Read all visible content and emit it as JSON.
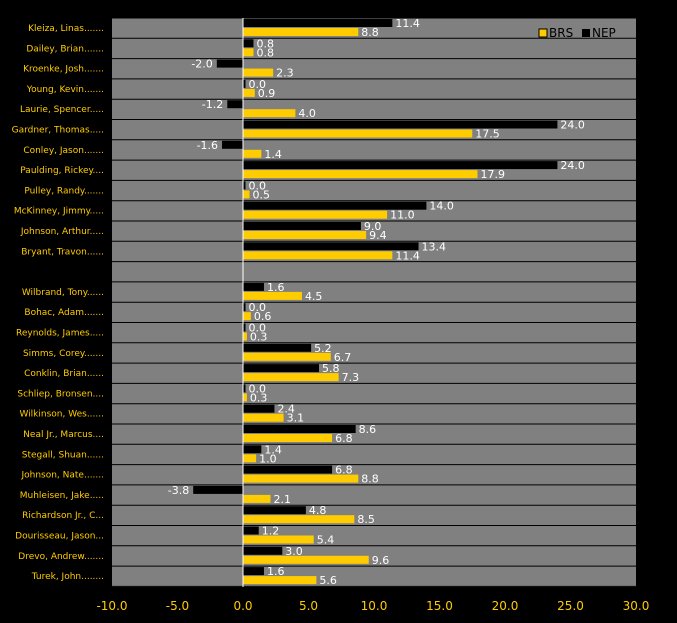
{
  "chart_data": {
    "type": "bar",
    "orientation": "horizontal",
    "xlim": [
      -10,
      30
    ],
    "x_ticks": [
      "-10.0",
      "-5.0",
      "0.0",
      "5.0",
      "10.0",
      "15.0",
      "20.0",
      "25.0",
      "30.0"
    ],
    "legend_placement": "top-right",
    "grid": "horizontal row separators",
    "colors": {
      "background": "#000000",
      "plot_area": "#808080",
      "row_line": "#000000",
      "zero_line": "#ffffff",
      "brs": "#ffcc00",
      "nep": "#000000",
      "label_text": "#ffcc00",
      "value_text": "#ffffff",
      "tick_text": "#ffcc00"
    },
    "series": [
      {
        "name": "NEP",
        "key": "nep"
      },
      {
        "name": "BRS",
        "key": "brs"
      }
    ],
    "rows": [
      {
        "label": "Kleiza, Linas.......",
        "nep": 11.4,
        "brs": 8.8,
        "nep_text": "11.4",
        "brs_text": "8.8"
      },
      {
        "label": "Dailey, Brian.......",
        "nep": 0.8,
        "brs": 0.8,
        "nep_text": "0.8",
        "brs_text": "0.8"
      },
      {
        "label": "Kroenke, Josh.......",
        "nep": -2.0,
        "brs": 2.3,
        "nep_text": "-2.0",
        "brs_text": "2.3"
      },
      {
        "label": "Young, Kevin.......",
        "nep": 0.0,
        "brs": 0.9,
        "nep_text": "0.0",
        "brs_text": "0.9"
      },
      {
        "label": "Laurie, Spencer.....",
        "nep": -1.2,
        "brs": 4.0,
        "nep_text": "-1.2",
        "brs_text": "4.0"
      },
      {
        "label": "Gardner, Thomas.....",
        "nep": 24.0,
        "brs": 17.5,
        "nep_text": "24.0",
        "brs_text": "17.5"
      },
      {
        "label": "Conley, Jason.......",
        "nep": -1.6,
        "brs": 1.4,
        "nep_text": "-1.6",
        "brs_text": "1.4"
      },
      {
        "label": "Paulding, Rickey....",
        "nep": 24.0,
        "brs": 17.9,
        "nep_text": "24.0",
        "brs_text": "17.9"
      },
      {
        "label": "Pulley, Randy.......",
        "nep": 0.0,
        "brs": 0.5,
        "nep_text": "0.0",
        "brs_text": "0.5"
      },
      {
        "label": "McKinney, Jimmy.....",
        "nep": 14.0,
        "brs": 11.0,
        "nep_text": "14.0",
        "brs_text": "11.0"
      },
      {
        "label": "Johnson, Arthur.....",
        "nep": 9.0,
        "brs": 9.4,
        "nep_text": "9.0",
        "brs_text": "9.4"
      },
      {
        "label": "Bryant, Travon......",
        "nep": 13.4,
        "brs": 11.4,
        "nep_text": "13.4",
        "brs_text": "11.4"
      },
      {
        "label": "",
        "nep": null,
        "brs": null,
        "nep_text": "",
        "brs_text": ""
      },
      {
        "label": "Wilbrand, Tony......",
        "nep": 1.6,
        "brs": 4.5,
        "nep_text": "1.6",
        "brs_text": "4.5"
      },
      {
        "label": "Bohac, Adam.......",
        "nep": 0.0,
        "brs": 0.6,
        "nep_text": "0.0",
        "brs_text": "0.6"
      },
      {
        "label": "Reynolds, James.....",
        "nep": 0.0,
        "brs": 0.3,
        "nep_text": "0.0",
        "brs_text": "0.3"
      },
      {
        "label": "Simms, Corey.......",
        "nep": 5.2,
        "brs": 6.7,
        "nep_text": "5.2",
        "brs_text": "6.7"
      },
      {
        "label": "Conklin, Brian......",
        "nep": 5.8,
        "brs": 7.3,
        "nep_text": "5.8",
        "brs_text": "7.3"
      },
      {
        "label": "Schliep, Bronsen....",
        "nep": 0.0,
        "brs": 0.3,
        "nep_text": "0.0",
        "brs_text": "0.3"
      },
      {
        "label": "Wilkinson, Wes......",
        "nep": 2.4,
        "brs": 3.1,
        "nep_text": "2.4",
        "brs_text": "3.1"
      },
      {
        "label": "Neal Jr., Marcus....",
        "nep": 8.6,
        "brs": 6.8,
        "nep_text": "8.6",
        "brs_text": "6.8"
      },
      {
        "label": "Stegall, Shuan......",
        "nep": 1.4,
        "brs": 1.0,
        "nep_text": "1.4",
        "brs_text": "1.0"
      },
      {
        "label": "Johnson, Nate.......",
        "nep": 6.8,
        "brs": 8.8,
        "nep_text": "6.8",
        "brs_text": "8.8"
      },
      {
        "label": "Muhleisen, Jake.....",
        "nep": -3.8,
        "brs": 2.1,
        "nep_text": "-3.8",
        "brs_text": "2.1"
      },
      {
        "label": "Richardson Jr., C...",
        "nep": 4.8,
        "brs": 8.5,
        "nep_text": "4.8",
        "brs_text": "8.5"
      },
      {
        "label": "Dourisseau, Jason...",
        "nep": 1.2,
        "brs": 5.4,
        "nep_text": "1.2",
        "brs_text": "5.4"
      },
      {
        "label": "Drevo, Andrew.......",
        "nep": 3.0,
        "brs": 9.6,
        "nep_text": "3.0",
        "brs_text": "9.6"
      },
      {
        "label": "Turek, John........",
        "nep": 1.6,
        "brs": 5.6,
        "nep_text": "1.6",
        "brs_text": "5.6"
      }
    ]
  }
}
